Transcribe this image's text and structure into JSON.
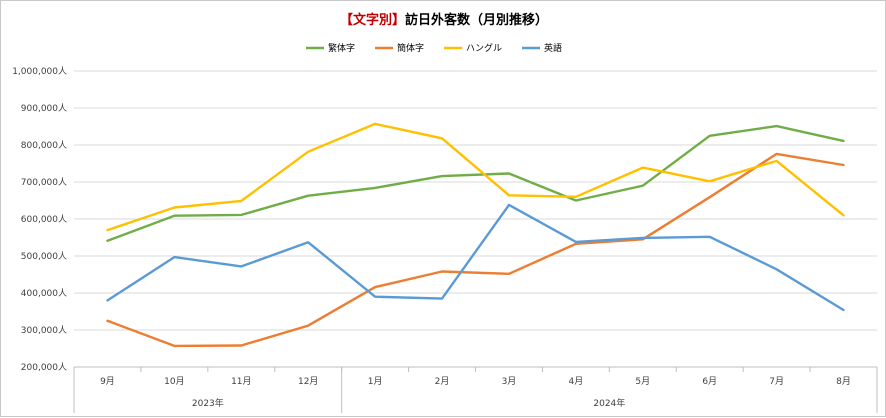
{
  "chart_data": {
    "type": "line",
    "title_prefix": "【文字別】",
    "title": "訪日外客数（月別推移）",
    "categories": [
      "9月",
      "10月",
      "11月",
      "12月",
      "1月",
      "2月",
      "3月",
      "4月",
      "5月",
      "6月",
      "7月",
      "8月"
    ],
    "category_groups": [
      {
        "label": "2023年",
        "start": 0,
        "end": 3
      },
      {
        "label": "2024年",
        "start": 4,
        "end": 11
      }
    ],
    "ylim": [
      200000,
      1000000
    ],
    "yticks": [
      200000,
      300000,
      400000,
      500000,
      600000,
      700000,
      800000,
      900000,
      1000000
    ],
    "ytick_labels": [
      "200,000人",
      "300,000人",
      "400,000人",
      "500,000人",
      "600,000人",
      "700,000人",
      "800,000人",
      "900,000人",
      "1,000,000人"
    ],
    "grid": true,
    "legend_position": "top",
    "series": [
      {
        "name": "繁体字",
        "color": "#70ad47",
        "values": [
          541000,
          609000,
          611000,
          663000,
          684000,
          716000,
          723000,
          650000,
          690000,
          825000,
          851000,
          811000
        ]
      },
      {
        "name": "簡体字",
        "color": "#ed7d31",
        "values": [
          325000,
          257000,
          258000,
          312000,
          416000,
          458000,
          452000,
          533000,
          545000,
          659000,
          776000,
          746000
        ]
      },
      {
        "name": "ハングル",
        "color": "#ffc000",
        "values": [
          570000,
          631000,
          649000,
          782000,
          857000,
          818000,
          664000,
          660000,
          739000,
          702000,
          757000,
          610000
        ]
      },
      {
        "name": "英語",
        "color": "#5b9bd5",
        "values": [
          380000,
          497000,
          472000,
          537000,
          390000,
          385000,
          638000,
          538000,
          549000,
          552000,
          464000,
          354000
        ]
      }
    ]
  }
}
